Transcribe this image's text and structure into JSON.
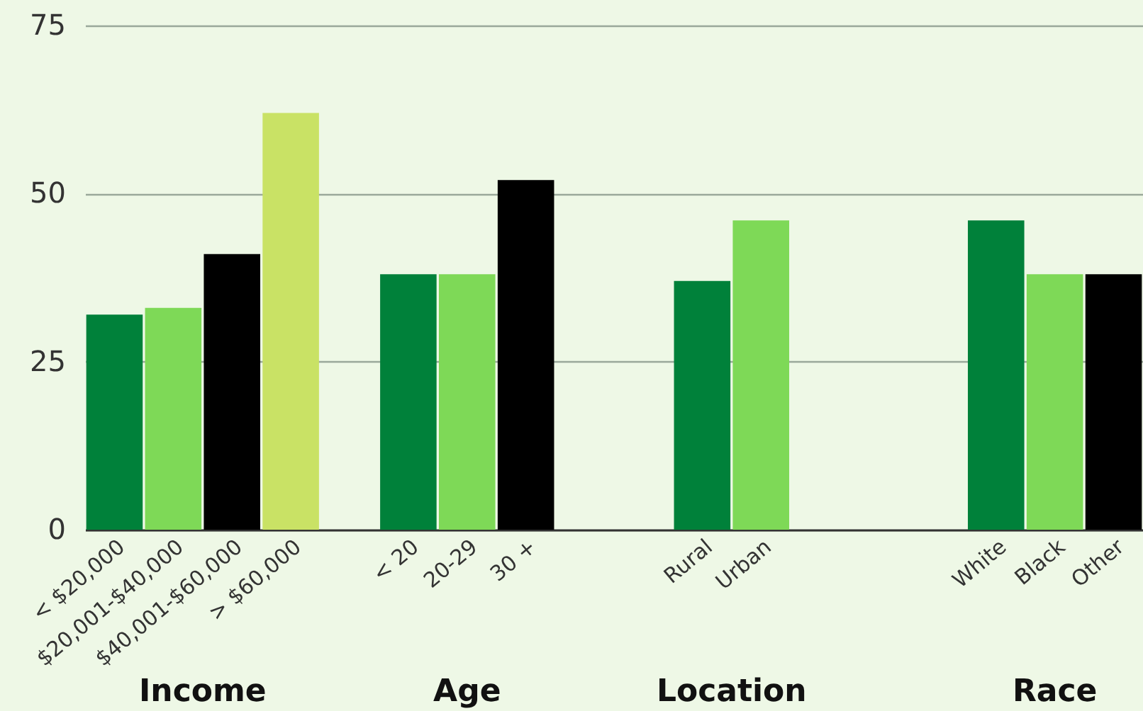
{
  "chart_data": {
    "type": "bar",
    "categories": [
      "< $20,000",
      "$20,001-$40,000",
      "$40,001-$60,000",
      "> $60,000",
      null,
      "< 20",
      "20-29",
      "30 +",
      null,
      null,
      "Rural",
      "Urban",
      null,
      null,
      null,
      "White",
      "Black",
      "Other"
    ],
    "values": [
      32,
      33,
      41,
      62,
      null,
      38,
      38,
      52,
      null,
      null,
      37,
      46,
      null,
      null,
      null,
      46,
      38,
      38
    ],
    "colors": [
      "#00813a",
      "#7ed957",
      "#000000",
      "#c9e265",
      null,
      "#00813a",
      "#7ed957",
      "#000000",
      null,
      null,
      "#00813a",
      "#7ed957",
      null,
      null,
      null,
      "#00813a",
      "#7ed957",
      "#000000"
    ],
    "ylim": [
      0,
      75
    ],
    "yticks": [
      0,
      25,
      50,
      75
    ],
    "grid": "y",
    "annotations": [
      "Income",
      "Age",
      "Location",
      "Race"
    ]
  }
}
